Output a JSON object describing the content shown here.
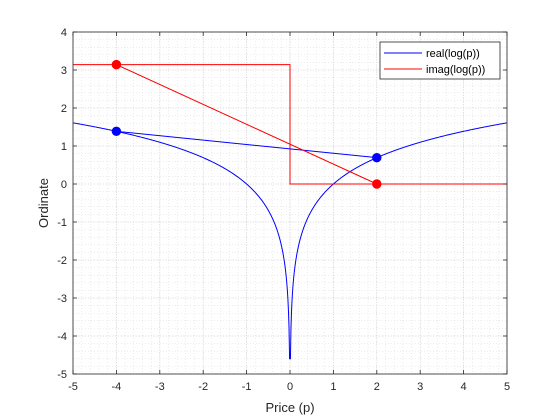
{
  "chart_data": {
    "type": "line",
    "xlabel": "Price (p)",
    "ylabel": "Ordinate",
    "xlim": [
      -5,
      5
    ],
    "ylim": [
      -5,
      4
    ],
    "x_ticks": [
      -5,
      -4,
      -3,
      -2,
      -1,
      0,
      1,
      2,
      3,
      4,
      5
    ],
    "x_tick_labels": [
      "-5",
      "-4",
      "-3",
      "-2",
      "-1",
      "0",
      "1",
      "2",
      "3",
      "4",
      "5"
    ],
    "y_ticks": [
      -5,
      -4,
      -3,
      -2,
      -1,
      0,
      1,
      2,
      3,
      4
    ],
    "y_tick_labels": [
      "-5",
      "-4",
      "-3",
      "-2",
      "-1",
      "0",
      "1",
      "2",
      "3",
      "4"
    ],
    "grid": true,
    "minor_grid": true,
    "legend_location": "top-right",
    "series": [
      {
        "name": "real(log(p))",
        "color": "#0000ff",
        "function": "log|p|",
        "x_range": [
          -5,
          5
        ],
        "y_min": -4.6
      },
      {
        "name": "imag(log(p))",
        "color": "#ff0000",
        "function": "pi for p<0, 0 for p>0",
        "x_range": [
          -5,
          5
        ],
        "y_values": [
          3.14159,
          0
        ]
      }
    ],
    "chords": [
      {
        "color": "#0000ff",
        "x": [
          -4,
          2
        ],
        "y": [
          1.386,
          0.693
        ]
      },
      {
        "color": "#ff0000",
        "x": [
          -4,
          2
        ],
        "y": [
          3.14159,
          0
        ]
      }
    ],
    "markers": [
      {
        "color": "#0000ff",
        "x": -4,
        "y": 1.386
      },
      {
        "color": "#0000ff",
        "x": 2,
        "y": 0.693
      },
      {
        "color": "#ff0000",
        "x": -4,
        "y": 3.14159
      },
      {
        "color": "#ff0000",
        "x": 2,
        "y": 0
      }
    ]
  }
}
